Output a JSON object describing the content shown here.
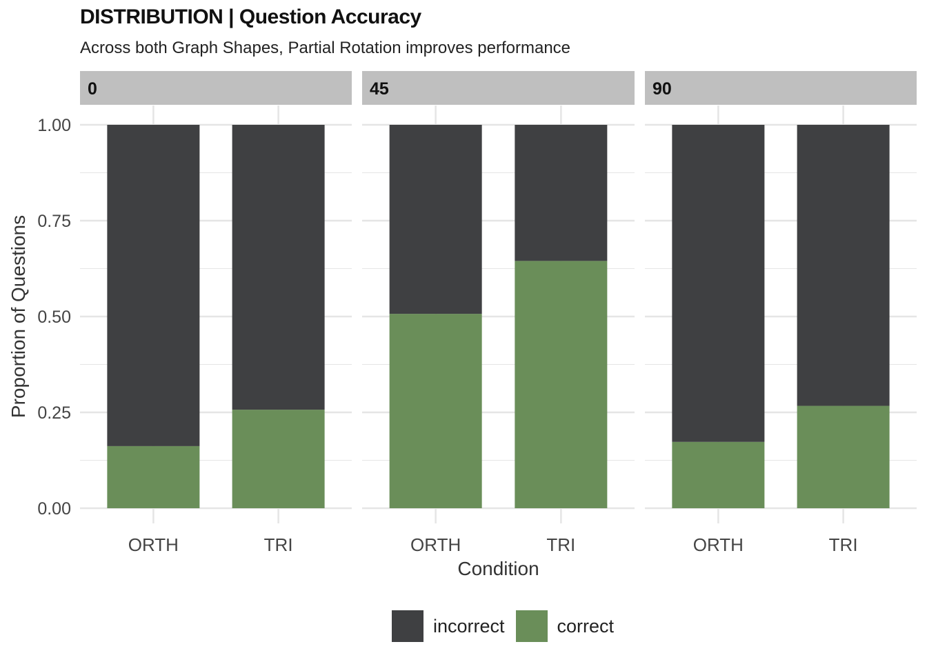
{
  "chart_data": {
    "type": "bar",
    "stacked": true,
    "title": "DISTRIBUTION | Question Accuracy",
    "subtitle": "Across both Graph Shapes, Partial Rotation improves performance",
    "xlabel": "Condition",
    "ylabel": "Proportion of Questions",
    "ylim": [
      0,
      1
    ],
    "yticks": [
      "0.00",
      "0.25",
      "0.50",
      "0.75",
      "1.00"
    ],
    "ytick_values": [
      0,
      0.25,
      0.5,
      0.75,
      1.0
    ],
    "categories": [
      "ORTH",
      "TRI"
    ],
    "grid": true,
    "legend_position": "bottom",
    "panels": [
      {
        "label": "0",
        "series": [
          {
            "name": "correct",
            "values": [
              0.162,
              0.257
            ]
          },
          {
            "name": "incorrect",
            "values": [
              0.838,
              0.743
            ]
          }
        ]
      },
      {
        "label": "45",
        "series": [
          {
            "name": "correct",
            "values": [
              0.507,
              0.645
            ]
          },
          {
            "name": "incorrect",
            "values": [
              0.493,
              0.355
            ]
          }
        ]
      },
      {
        "label": "90",
        "series": [
          {
            "name": "correct",
            "values": [
              0.173,
              0.267
            ]
          },
          {
            "name": "incorrect",
            "values": [
              0.827,
              0.733
            ]
          }
        ]
      }
    ],
    "legend": [
      {
        "name": "incorrect",
        "color": "#3f4042"
      },
      {
        "name": "correct",
        "color": "#6a8e59"
      }
    ]
  },
  "colors": {
    "incorrect": "#3f4042",
    "correct": "#6a8e59",
    "strip": "#bfbfbf",
    "grid": "#e5e5e5"
  }
}
